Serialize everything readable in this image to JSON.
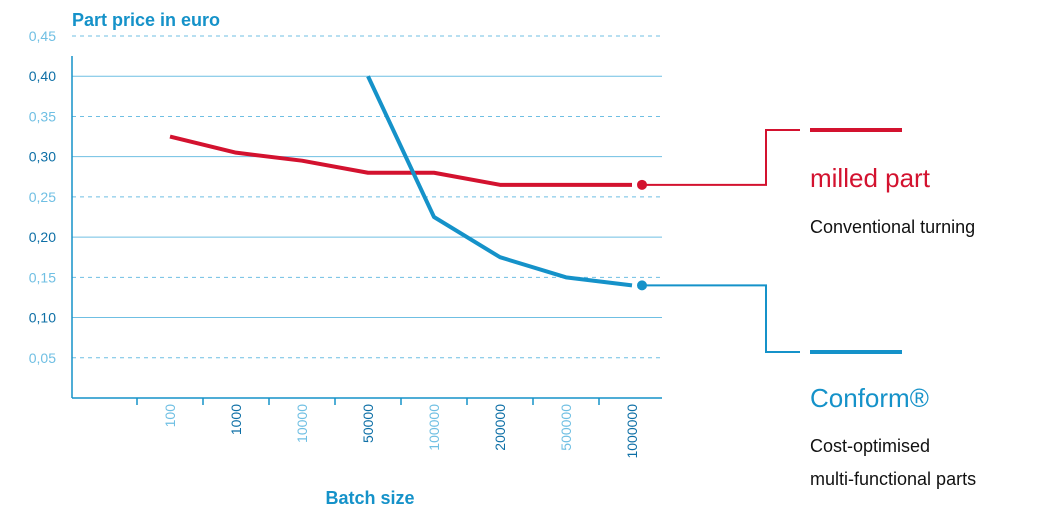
{
  "chart_data": {
    "type": "line",
    "title": "Part price in euro",
    "xlabel": "Batch size",
    "ylabel": "",
    "ylim": [
      0,
      0.45
    ],
    "y_ticks": [
      {
        "value": 0.45,
        "label": "0,45",
        "major": false
      },
      {
        "value": 0.4,
        "label": "0,40",
        "major": true
      },
      {
        "value": 0.35,
        "label": "0,35",
        "major": false
      },
      {
        "value": 0.3,
        "label": "0,30",
        "major": true
      },
      {
        "value": 0.25,
        "label": "0,25",
        "major": false
      },
      {
        "value": 0.2,
        "label": "0,20",
        "major": true
      },
      {
        "value": 0.15,
        "label": "0,15",
        "major": false
      },
      {
        "value": 0.1,
        "label": "0,10",
        "major": true
      },
      {
        "value": 0.05,
        "label": "0,05",
        "major": false
      }
    ],
    "categories": [
      {
        "label": "100",
        "major": false
      },
      {
        "label": "1000",
        "major": true
      },
      {
        "label": "10000",
        "major": false
      },
      {
        "label": "50000",
        "major": true
      },
      {
        "label": "100000",
        "major": false
      },
      {
        "label": "200000",
        "major": true
      },
      {
        "label": "500000",
        "major": false
      },
      {
        "label": "1000000",
        "major": true
      }
    ],
    "grid": true,
    "series": [
      {
        "key": "milled",
        "name": "milled part",
        "description": "Conventional turning",
        "color": "#d3122f",
        "points": [
          {
            "x": "100",
            "y": 0.325
          },
          {
            "x": "1000",
            "y": 0.305
          },
          {
            "x": "10000",
            "y": 0.295
          },
          {
            "x": "50000",
            "y": 0.28
          },
          {
            "x": "100000",
            "y": 0.28
          },
          {
            "x": "200000",
            "y": 0.265
          },
          {
            "x": "500000",
            "y": 0.265
          },
          {
            "x": "1000000",
            "y": 0.265
          }
        ]
      },
      {
        "key": "conform",
        "name": "Conform®",
        "description_lines": [
          "Cost-optimised",
          "multi-functional parts"
        ],
        "color": "#1592c9",
        "points": [
          {
            "x": "50000",
            "y": 0.4
          },
          {
            "x": "100000",
            "y": 0.225
          },
          {
            "x": "200000",
            "y": 0.175
          },
          {
            "x": "500000",
            "y": 0.15
          },
          {
            "x": "1000000",
            "y": 0.14
          }
        ]
      }
    ]
  },
  "colors": {
    "major_text": "#0d6fa6",
    "minor_text": "#6fbfe3",
    "grid": "#6fbfe3",
    "axis": "#1592c9"
  }
}
